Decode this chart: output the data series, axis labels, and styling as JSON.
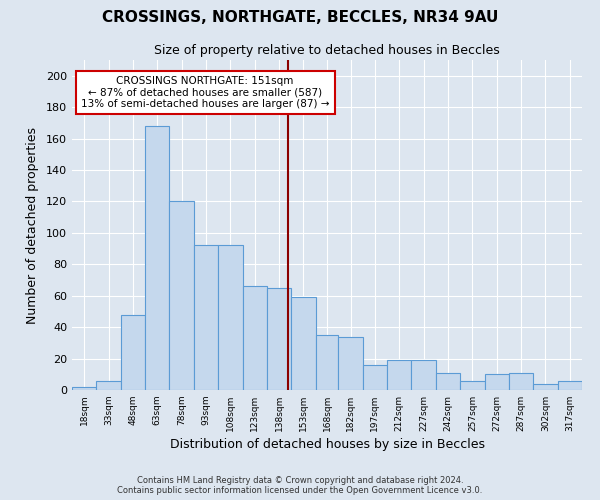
{
  "title": "CROSSINGS, NORTHGATE, BECCLES, NR34 9AU",
  "subtitle": "Size of property relative to detached houses in Beccles",
  "xlabel": "Distribution of detached houses by size in Beccles",
  "ylabel": "Number of detached properties",
  "bar_color": "#c5d8ed",
  "bar_edge_color": "#5b9bd5",
  "background_color": "#dde6f0",
  "grid_color": "#ffffff",
  "annotation_line_color": "#8b0000",
  "annotation_box_color": "#cc0000",
  "annotation_text": "CROSSINGS NORTHGATE: 151sqm\n← 87% of detached houses are smaller (587)\n13% of semi-detached houses are larger (87) →",
  "vline_x": 151,
  "categories": [
    "18sqm",
    "33sqm",
    "48sqm",
    "63sqm",
    "78sqm",
    "93sqm",
    "108sqm",
    "123sqm",
    "138sqm",
    "153sqm",
    "168sqm",
    "182sqm",
    "197sqm",
    "212sqm",
    "227sqm",
    "242sqm",
    "257sqm",
    "272sqm",
    "287sqm",
    "302sqm",
    "317sqm"
  ],
  "bin_edges": [
    18,
    33,
    48,
    63,
    78,
    93,
    108,
    123,
    138,
    153,
    168,
    182,
    197,
    212,
    227,
    242,
    257,
    272,
    287,
    302,
    317,
    332
  ],
  "bar_heights": [
    2,
    6,
    48,
    168,
    120,
    92,
    92,
    66,
    65,
    59,
    35,
    34,
    16,
    19,
    19,
    11,
    6,
    10,
    11,
    4,
    6
  ],
  "footer1": "Contains HM Land Registry data © Crown copyright and database right 2024.",
  "footer2": "Contains public sector information licensed under the Open Government Licence v3.0.",
  "ylim": [
    0,
    210
  ],
  "yticks": [
    0,
    20,
    40,
    60,
    80,
    100,
    120,
    140,
    160,
    180,
    200
  ],
  "figsize": [
    6.0,
    5.0
  ],
  "dpi": 100
}
